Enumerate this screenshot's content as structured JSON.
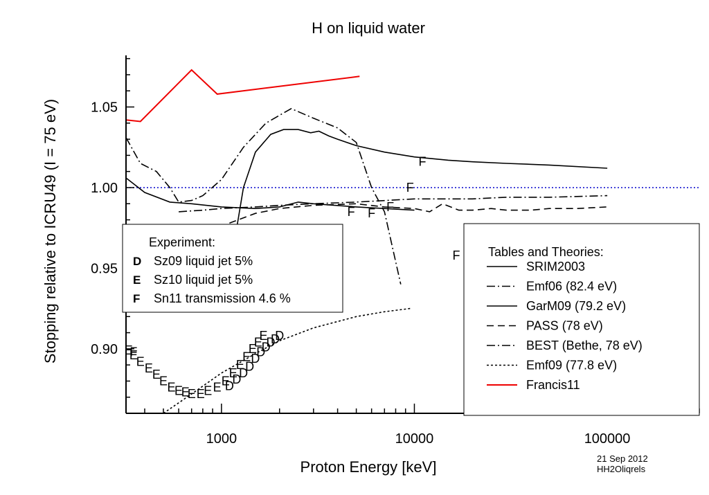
{
  "chart_data": {
    "type": "line",
    "title": "H on liquid water",
    "xlabel": "Proton Energy [keV]",
    "ylabel": "Stopping relative to ICRU49 (I = 75 eV)",
    "x_scale": "log",
    "xlim": [
      320,
      300000
    ],
    "ylim": [
      0.86,
      1.082
    ],
    "x_ticks": [
      {
        "value": 1000,
        "label": "1000"
      },
      {
        "value": 10000,
        "label": "10000"
      },
      {
        "value": 100000,
        "label": "100000"
      }
    ],
    "y_ticks": [
      {
        "value": 0.9,
        "label": "0.90"
      },
      {
        "value": 0.95,
        "label": "0.95"
      },
      {
        "value": 1.0,
        "label": "1.00"
      },
      {
        "value": 1.05,
        "label": "1.05"
      }
    ],
    "reference_line": {
      "y": 1.0,
      "color": "#0000cc"
    },
    "series": [
      {
        "name": "SRIM2003",
        "style": "solid",
        "color": "#000000",
        "x": [
          1200,
          1300,
          1500,
          1800,
          2100,
          2500,
          2900,
          3200,
          3600,
          4000,
          5000,
          7000,
          10000,
          15000,
          20000,
          30000,
          50000,
          100000
        ],
        "y": [
          0.975,
          1.0,
          1.022,
          1.033,
          1.036,
          1.036,
          1.034,
          1.035,
          1.032,
          1.03,
          1.026,
          1.022,
          1.019,
          1.017,
          1.016,
          1.015,
          1.014,
          1.012
        ]
      },
      {
        "name": "Emf06 (82.4 eV)",
        "style": "dashdot",
        "color": "#000000",
        "x": [
          320,
          380,
          460,
          540,
          600,
          700,
          800,
          1000,
          1300,
          1700,
          2300,
          3000,
          4000,
          5000,
          6000,
          7000,
          8500
        ],
        "y": [
          1.031,
          1.015,
          1.01,
          1.0,
          0.991,
          0.992,
          0.995,
          1.005,
          1.025,
          1.04,
          1.049,
          1.043,
          1.037,
          1.028,
          1.0,
          0.985,
          0.94
        ]
      },
      {
        "name": "GarM09 (79.2 eV)",
        "style": "solid",
        "color": "#000000",
        "x": [
          320,
          400,
          540,
          700,
          1000,
          1500,
          2000,
          2500,
          3000,
          5000,
          10000
        ],
        "y": [
          1.006,
          0.997,
          0.991,
          0.99,
          0.988,
          0.987,
          0.988,
          0.991,
          0.99,
          0.988,
          0.986
        ]
      },
      {
        "name": "PASS (78 eV)",
        "style": "dashed",
        "color": "#000000",
        "x": [
          1100,
          1500,
          2000,
          3000,
          5000,
          7000,
          10000,
          12000,
          14000,
          17000,
          20000,
          25000,
          30000,
          40000,
          50000,
          70000,
          100000
        ],
        "y": [
          0.978,
          0.984,
          0.987,
          0.989,
          0.99,
          0.988,
          0.987,
          0.985,
          0.99,
          0.986,
          0.986,
          0.987,
          0.986,
          0.986,
          0.987,
          0.987,
          0.988
        ]
      },
      {
        "name": "BEST (Bethe, 78 eV)",
        "style": "dashdot",
        "color": "#000000",
        "x": [
          600,
          800,
          1000,
          1500,
          2000,
          3000,
          5000,
          10000,
          20000,
          30000,
          50000,
          100000
        ],
        "y": [
          0.985,
          0.986,
          0.987,
          0.988,
          0.989,
          0.99,
          0.991,
          0.993,
          0.993,
          0.994,
          0.994,
          0.995
        ]
      },
      {
        "name": "Emf09 (77.8 eV)",
        "style": "dotted",
        "color": "#000000",
        "x": [
          500,
          700,
          1000,
          1500,
          2000,
          3000,
          5000,
          7000,
          9500
        ],
        "y": [
          0.86,
          0.872,
          0.885,
          0.897,
          0.905,
          0.913,
          0.92,
          0.923,
          0.925
        ]
      },
      {
        "name": "Francis11",
        "style": "solid",
        "color": "#ee0000",
        "x": [
          320,
          380,
          700,
          950,
          5200
        ],
        "y": [
          1.042,
          1.041,
          1.073,
          1.058,
          1.069
        ]
      }
    ],
    "markers": [
      {
        "name": "Sz09 liquid jet 5%",
        "symbol": "D",
        "x": [
          1100,
          1200,
          1300,
          1400,
          1500,
          1600,
          1700,
          1800,
          1900,
          2000
        ],
        "y": [
          0.877,
          0.881,
          0.885,
          0.889,
          0.894,
          0.898,
          0.901,
          0.904,
          0.906,
          0.908
        ]
      },
      {
        "name": "Sz10 liquid jet 5%",
        "symbol": "E",
        "x": [
          330,
          350,
          380,
          420,
          460,
          500,
          550,
          600,
          650,
          700,
          780,
          850,
          950,
          1050,
          1150,
          1250,
          1350,
          1450,
          1550,
          1650
        ],
        "y": [
          0.899,
          0.896,
          0.892,
          0.888,
          0.884,
          0.88,
          0.876,
          0.874,
          0.873,
          0.872,
          0.872,
          0.874,
          0.876,
          0.88,
          0.885,
          0.89,
          0.895,
          0.9,
          0.904,
          0.908
        ]
      },
      {
        "name": "Sn11 transmission 4.6 %",
        "symbol": "F",
        "x": [
          350,
          4700,
          6000,
          7500,
          9500,
          11000,
          16500
        ],
        "y": [
          0.898,
          0.985,
          0.984,
          0.988,
          1.0,
          1.016,
          0.958
        ]
      }
    ],
    "legend_experiment": {
      "title": "Experiment:",
      "items": [
        {
          "symbol": "D",
          "label": "Sz09 liquid jet 5%"
        },
        {
          "symbol": "E",
          "label": "Sz10 liquid jet 5%"
        },
        {
          "symbol": "F",
          "label": "Sn11 transmission 4.6 %"
        }
      ]
    },
    "legend_theory": {
      "title": "Tables and Theories:",
      "items": [
        {
          "label": "SRIM2003",
          "style": "solid",
          "color": "#000000"
        },
        {
          "label": "Emf06 (82.4 eV)",
          "style": "dashdot",
          "color": "#000000"
        },
        {
          "label": "GarM09 (79.2 eV)",
          "style": "solid",
          "color": "#000000"
        },
        {
          "label": "PASS (78 eV)",
          "style": "dashed",
          "color": "#000000"
        },
        {
          "label": "BEST (Bethe, 78 eV)",
          "style": "dashdot",
          "color": "#000000"
        },
        {
          "label": "Emf09 (77.8 eV)",
          "style": "dotted",
          "color": "#000000"
        },
        {
          "label": "Francis11",
          "style": "solid",
          "color": "#ee0000"
        }
      ]
    },
    "footer": {
      "date": "21 Sep 2012",
      "id": "HH2Oliqrels"
    }
  }
}
